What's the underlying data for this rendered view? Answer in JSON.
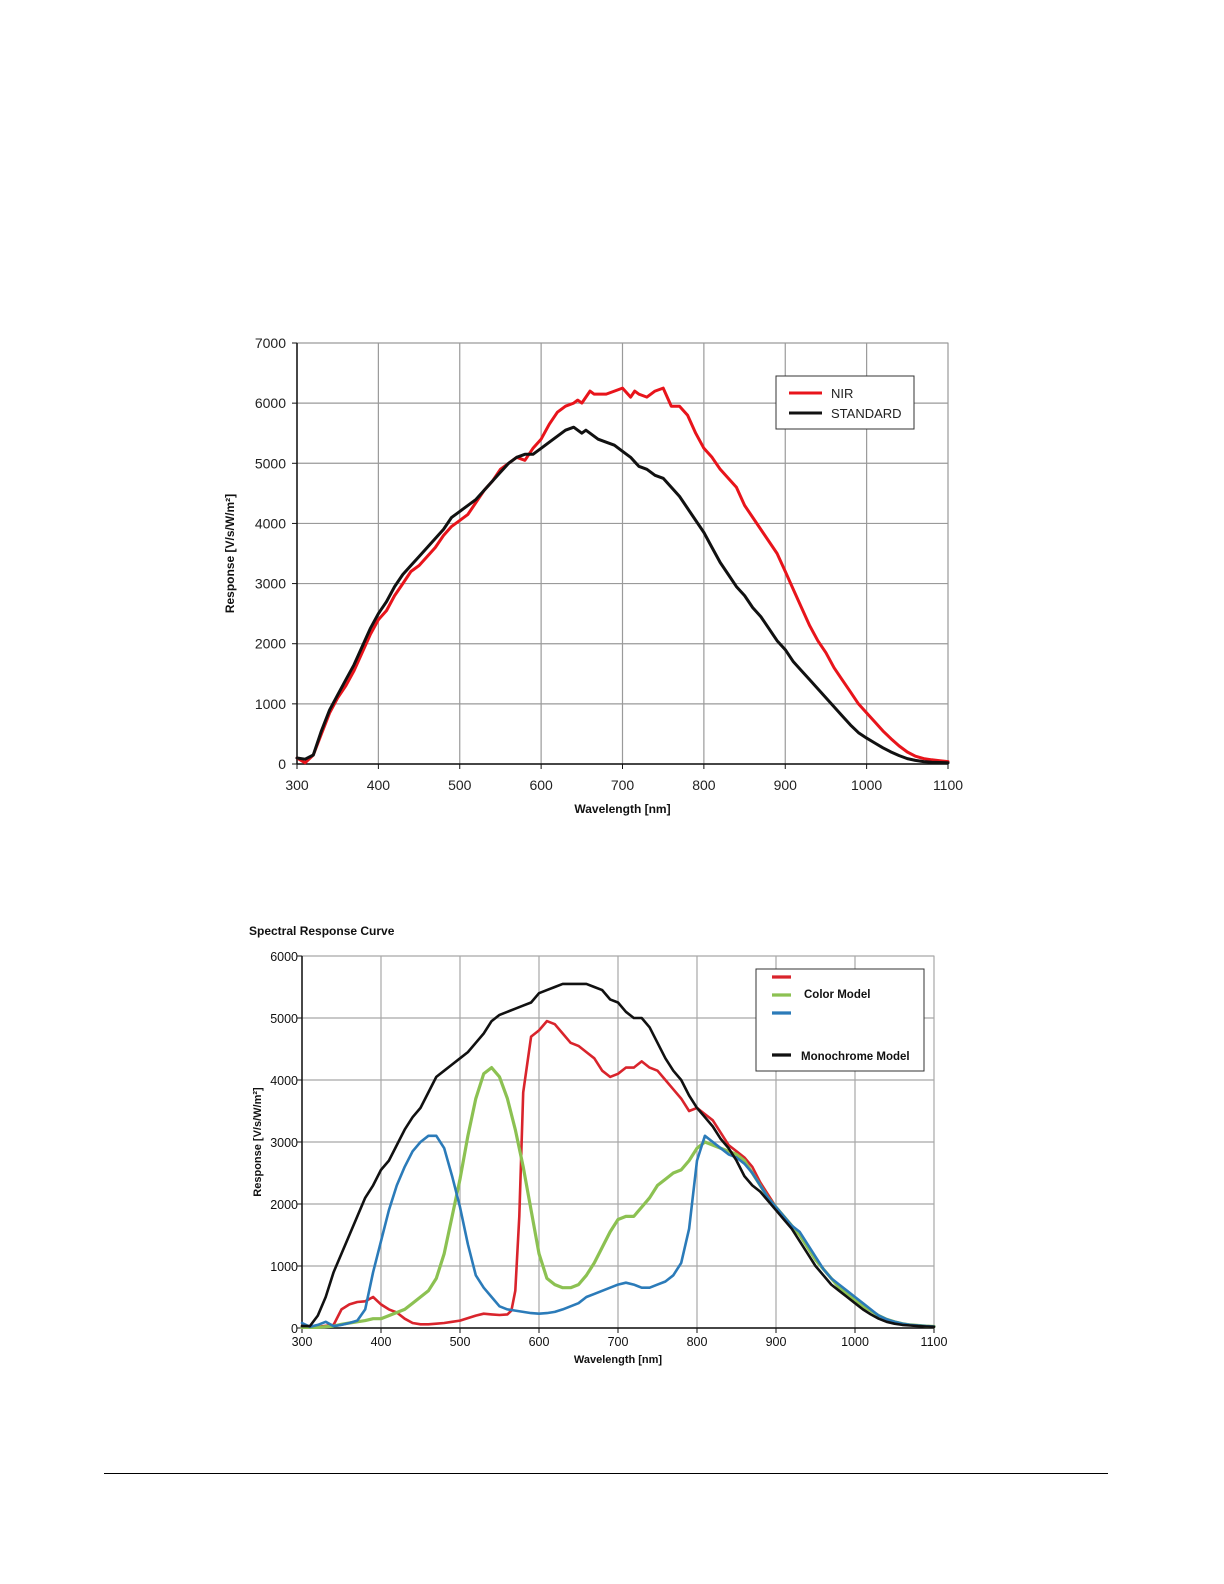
{
  "chart_data": [
    {
      "type": "line",
      "title": "",
      "xlabel": "Wavelength [nm]",
      "ylabel": "Response [V/s/W/m²]",
      "xlim": [
        300,
        1100
      ],
      "ylim": [
        0,
        7000
      ],
      "xticks": [
        "300",
        "400",
        "500",
        "600",
        "700",
        "800",
        "900",
        "1000",
        "1100"
      ],
      "yticks": [
        "0",
        "1000",
        "2000",
        "3000",
        "4000",
        "5000",
        "6000",
        "7000"
      ],
      "grid": true,
      "legend_position": "top-right",
      "series": [
        {
          "name": "NIR",
          "color": "#e8141b",
          "x": [
            300,
            310,
            320,
            330,
            340,
            350,
            360,
            370,
            380,
            390,
            400,
            410,
            420,
            430,
            440,
            450,
            460,
            470,
            480,
            490,
            500,
            510,
            520,
            530,
            540,
            550,
            560,
            570,
            580,
            590,
            600,
            610,
            620,
            630,
            640,
            645,
            650,
            660,
            665,
            670,
            680,
            690,
            700,
            710,
            715,
            720,
            730,
            740,
            750,
            760,
            770,
            780,
            790,
            800,
            810,
            820,
            830,
            840,
            850,
            860,
            870,
            880,
            890,
            900,
            910,
            920,
            930,
            940,
            950,
            960,
            970,
            980,
            990,
            1000,
            1010,
            1020,
            1030,
            1040,
            1050,
            1060,
            1070,
            1080,
            1090,
            1100
          ],
          "y": [
            100,
            20,
            150,
            500,
            850,
            1100,
            1300,
            1550,
            1850,
            2150,
            2400,
            2550,
            2800,
            3000,
            3200,
            3300,
            3450,
            3600,
            3800,
            3950,
            4050,
            4150,
            4350,
            4550,
            4700,
            4900,
            5000,
            5100,
            5050,
            5250,
            5400,
            5650,
            5850,
            5950,
            6000,
            6050,
            6000,
            6200,
            6150,
            6150,
            6150,
            6200,
            6250,
            6100,
            6200,
            6150,
            6100,
            6200,
            6250,
            5950,
            5950,
            5800,
            5500,
            5250,
            5100,
            4900,
            4750,
            4600,
            4300,
            4100,
            3900,
            3700,
            3500,
            3200,
            2900,
            2600,
            2300,
            2050,
            1850,
            1600,
            1400,
            1200,
            1000,
            850,
            700,
            550,
            420,
            300,
            200,
            130,
            90,
            70,
            55,
            40
          ]
        },
        {
          "name": "STANDARD",
          "color": "#111111",
          "x": [
            300,
            310,
            320,
            330,
            340,
            350,
            360,
            370,
            380,
            390,
            400,
            410,
            420,
            430,
            440,
            450,
            460,
            470,
            480,
            490,
            500,
            510,
            520,
            530,
            540,
            550,
            560,
            570,
            580,
            590,
            600,
            610,
            620,
            630,
            640,
            650,
            655,
            660,
            670,
            680,
            690,
            700,
            710,
            720,
            730,
            740,
            750,
            760,
            770,
            780,
            790,
            800,
            810,
            820,
            830,
            840,
            850,
            860,
            870,
            880,
            890,
            900,
            910,
            920,
            930,
            940,
            950,
            960,
            970,
            980,
            990,
            1000,
            1010,
            1020,
            1030,
            1040,
            1050,
            1060,
            1070,
            1080,
            1090,
            1100
          ],
          "y": [
            100,
            80,
            150,
            550,
            900,
            1150,
            1400,
            1650,
            1950,
            2250,
            2500,
            2700,
            2950,
            3150,
            3300,
            3450,
            3600,
            3750,
            3900,
            4100,
            4200,
            4300,
            4400,
            4550,
            4700,
            4850,
            5000,
            5100,
            5150,
            5150,
            5250,
            5350,
            5450,
            5550,
            5600,
            5500,
            5550,
            5500,
            5400,
            5350,
            5300,
            5200,
            5100,
            4950,
            4900,
            4800,
            4750,
            4600,
            4450,
            4250,
            4050,
            3850,
            3600,
            3350,
            3150,
            2950,
            2800,
            2600,
            2450,
            2250,
            2050,
            1900,
            1700,
            1550,
            1400,
            1250,
            1100,
            950,
            800,
            650,
            520,
            430,
            350,
            270,
            200,
            140,
            90,
            60,
            40,
            30,
            25,
            20
          ]
        }
      ]
    },
    {
      "type": "line",
      "title": "Spectral Response Curve",
      "xlabel": "Wavelength [nm]",
      "ylabel": "Response [V/s/W/m²]",
      "xlim": [
        300,
        1100
      ],
      "ylim": [
        0,
        6000
      ],
      "xticks": [
        "300",
        "400",
        "500",
        "600",
        "700",
        "800",
        "900",
        "1000",
        "1100"
      ],
      "yticks": [
        "0",
        "1000",
        "2000",
        "3000",
        "4000",
        "5000",
        "6000"
      ],
      "grid": true,
      "legend_position": "top-right",
      "legend_labels": {
        "color_model": "Color Model",
        "mono_model": "Monochrome Model"
      },
      "series": [
        {
          "color": "#d9242c",
          "x": [
            300,
            320,
            340,
            350,
            360,
            370,
            380,
            390,
            400,
            410,
            420,
            430,
            440,
            450,
            460,
            470,
            480,
            490,
            500,
            510,
            520,
            530,
            540,
            550,
            560,
            565,
            570,
            575,
            580,
            590,
            600,
            610,
            620,
            630,
            640,
            650,
            660,
            670,
            680,
            690,
            700,
            710,
            720,
            730,
            740,
            750,
            760,
            770,
            780,
            790,
            800,
            810,
            820,
            830,
            840,
            850,
            860,
            870,
            880,
            890,
            900,
            910,
            920,
            930,
            940,
            950,
            960,
            970,
            980,
            990,
            1000,
            1010,
            1020,
            1030,
            1040,
            1050,
            1060,
            1070,
            1080,
            1090,
            1100
          ],
          "y": [
            30,
            20,
            50,
            300,
            380,
            420,
            430,
            500,
            380,
            300,
            250,
            150,
            80,
            60,
            60,
            70,
            80,
            100,
            120,
            160,
            200,
            230,
            220,
            210,
            220,
            280,
            600,
            1800,
            3800,
            4700,
            4800,
            4950,
            4900,
            4750,
            4600,
            4550,
            4450,
            4350,
            4150,
            4050,
            4100,
            4200,
            4200,
            4300,
            4200,
            4150,
            4000,
            3850,
            3700,
            3500,
            3550,
            3450,
            3350,
            3150,
            2950,
            2850,
            2750,
            2600,
            2350,
            2150,
            1950,
            1800,
            1650,
            1500,
            1300,
            1100,
            950,
            800,
            650,
            550,
            450,
            350,
            280,
            200,
            140,
            100,
            70,
            50,
            40,
            30,
            25
          ]
        },
        {
          "color": "#8cc152",
          "x": [
            300,
            320,
            340,
            350,
            360,
            370,
            380,
            390,
            400,
            410,
            420,
            430,
            440,
            450,
            460,
            470,
            480,
            490,
            500,
            510,
            520,
            530,
            540,
            550,
            560,
            570,
            580,
            590,
            600,
            610,
            620,
            630,
            640,
            650,
            660,
            670,
            680,
            690,
            700,
            710,
            720,
            730,
            740,
            750,
            760,
            770,
            780,
            790,
            800,
            810,
            820,
            830,
            840,
            850,
            860,
            870,
            880,
            890,
            900,
            910,
            920,
            930,
            940,
            950,
            960,
            970,
            980,
            990,
            1000,
            1010,
            1020,
            1030,
            1040,
            1050,
            1060,
            1070,
            1080,
            1090,
            1100
          ],
          "y": [
            10,
            10,
            30,
            60,
            80,
            100,
            120,
            150,
            150,
            200,
            250,
            300,
            400,
            500,
            600,
            800,
            1200,
            1800,
            2400,
            3100,
            3700,
            4100,
            4200,
            4050,
            3700,
            3200,
            2600,
            1900,
            1200,
            800,
            700,
            650,
            650,
            700,
            850,
            1050,
            1300,
            1550,
            1750,
            1800,
            1800,
            1950,
            2100,
            2300,
            2400,
            2500,
            2550,
            2700,
            2900,
            3000,
            2950,
            2900,
            2850,
            2800,
            2700,
            2500,
            2300,
            2100,
            1950,
            1800,
            1650,
            1500,
            1300,
            1100,
            950,
            800,
            650,
            550,
            450,
            350,
            280,
            200,
            140,
            100,
            70,
            50,
            40,
            30,
            25
          ]
        },
        {
          "color": "#2b7bb9",
          "x": [
            300,
            310,
            320,
            330,
            340,
            350,
            360,
            370,
            380,
            390,
            400,
            410,
            420,
            430,
            440,
            450,
            460,
            470,
            480,
            490,
            500,
            510,
            520,
            530,
            540,
            550,
            560,
            570,
            580,
            590,
            600,
            610,
            620,
            630,
            640,
            650,
            660,
            670,
            680,
            690,
            700,
            710,
            720,
            730,
            740,
            750,
            760,
            770,
            780,
            790,
            800,
            810,
            820,
            830,
            840,
            850,
            860,
            870,
            880,
            890,
            900,
            910,
            920,
            930,
            940,
            950,
            960,
            970,
            980,
            990,
            1000,
            1010,
            1020,
            1030,
            1040,
            1050,
            1060,
            1070,
            1080,
            1090,
            1100
          ],
          "y": [
            80,
            20,
            50,
            100,
            30,
            50,
            80,
            120,
            300,
            900,
            1400,
            1900,
            2300,
            2600,
            2850,
            3000,
            3100,
            3100,
            2900,
            2450,
            1950,
            1350,
            850,
            650,
            500,
            350,
            300,
            280,
            260,
            240,
            230,
            240,
            260,
            300,
            350,
            400,
            500,
            550,
            600,
            650,
            700,
            730,
            700,
            650,
            650,
            700,
            750,
            850,
            1050,
            1600,
            2700,
            3100,
            3000,
            2900,
            2800,
            2750,
            2650,
            2500,
            2300,
            2100,
            1950,
            1800,
            1650,
            1550,
            1350,
            1150,
            950,
            800,
            700,
            600,
            500,
            400,
            300,
            200,
            140,
            100,
            70,
            50,
            40,
            30,
            25
          ]
        },
        {
          "color": "#111111",
          "x": [
            300,
            310,
            320,
            330,
            340,
            350,
            360,
            370,
            380,
            390,
            400,
            410,
            420,
            430,
            440,
            450,
            460,
            470,
            480,
            490,
            500,
            510,
            520,
            530,
            540,
            550,
            560,
            570,
            580,
            590,
            600,
            610,
            620,
            630,
            640,
            650,
            660,
            670,
            680,
            690,
            700,
            710,
            720,
            730,
            740,
            750,
            760,
            770,
            780,
            790,
            800,
            810,
            820,
            830,
            840,
            850,
            860,
            870,
            880,
            890,
            900,
            910,
            920,
            930,
            940,
            950,
            960,
            970,
            980,
            990,
            1000,
            1010,
            1020,
            1030,
            1040,
            1050,
            1060,
            1070,
            1080,
            1090,
            1100
          ],
          "y": [
            30,
            30,
            200,
            500,
            900,
            1200,
            1500,
            1800,
            2100,
            2300,
            2550,
            2700,
            2950,
            3200,
            3400,
            3550,
            3800,
            4050,
            4150,
            4250,
            4350,
            4450,
            4600,
            4750,
            4950,
            5050,
            5100,
            5150,
            5200,
            5250,
            5400,
            5450,
            5500,
            5550,
            5550,
            5550,
            5550,
            5500,
            5450,
            5300,
            5250,
            5100,
            5000,
            5000,
            4850,
            4600,
            4350,
            4150,
            4000,
            3750,
            3550,
            3400,
            3250,
            3050,
            2900,
            2700,
            2450,
            2300,
            2200,
            2050,
            1900,
            1750,
            1600,
            1400,
            1200,
            1000,
            850,
            700,
            600,
            500,
            400,
            300,
            220,
            150,
            100,
            70,
            50,
            40,
            30,
            25,
            20
          ]
        }
      ]
    }
  ]
}
